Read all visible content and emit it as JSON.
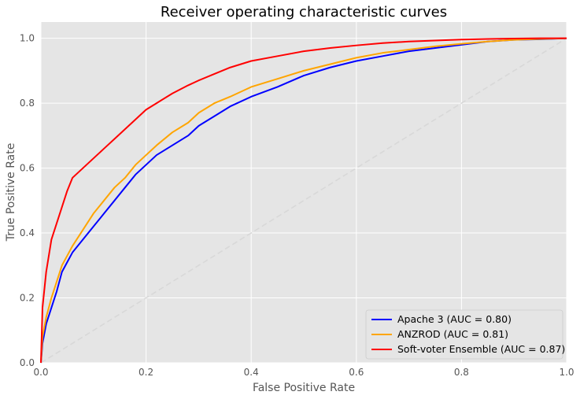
{
  "chart_data": {
    "type": "line",
    "title": "Receiver operating characteristic curves",
    "xlabel": "False Positive Rate",
    "ylabel": "True Positive Rate",
    "xlim": [
      0.0,
      1.0
    ],
    "ylim": [
      0.0,
      1.05
    ],
    "x_ticks": [
      "0.0",
      "0.2",
      "0.4",
      "0.6",
      "0.8",
      "1.0"
    ],
    "y_ticks": [
      "0.0",
      "0.2",
      "0.4",
      "0.6",
      "0.8",
      "1.0"
    ],
    "grid": true,
    "legend_position": "lower-right",
    "diagonal_reference": true,
    "series": [
      {
        "name": "Apache 3 (AUC = 0.80)",
        "color": "#0000ff",
        "x": [
          0.0,
          0.003,
          0.01,
          0.02,
          0.03,
          0.04,
          0.05,
          0.06,
          0.08,
          0.1,
          0.12,
          0.14,
          0.16,
          0.18,
          0.2,
          0.22,
          0.25,
          0.28,
          0.3,
          0.33,
          0.36,
          0.4,
          0.45,
          0.5,
          0.55,
          0.6,
          0.65,
          0.7,
          0.75,
          0.8,
          0.85,
          0.9,
          0.95,
          1.0
        ],
        "y": [
          0.0,
          0.06,
          0.12,
          0.17,
          0.22,
          0.28,
          0.31,
          0.34,
          0.38,
          0.42,
          0.46,
          0.5,
          0.54,
          0.58,
          0.61,
          0.64,
          0.67,
          0.7,
          0.73,
          0.76,
          0.79,
          0.82,
          0.85,
          0.885,
          0.91,
          0.93,
          0.945,
          0.96,
          0.97,
          0.98,
          0.99,
          0.995,
          0.997,
          1.0
        ]
      },
      {
        "name": "ANZROD (AUC = 0.81)",
        "color": "#ffa500",
        "x": [
          0.0,
          0.003,
          0.01,
          0.02,
          0.03,
          0.04,
          0.05,
          0.06,
          0.08,
          0.1,
          0.12,
          0.14,
          0.16,
          0.18,
          0.2,
          0.22,
          0.25,
          0.28,
          0.3,
          0.33,
          0.36,
          0.4,
          0.45,
          0.5,
          0.55,
          0.6,
          0.65,
          0.7,
          0.75,
          0.8,
          0.85,
          0.9,
          0.95,
          1.0
        ],
        "y": [
          0.0,
          0.08,
          0.14,
          0.2,
          0.25,
          0.3,
          0.33,
          0.36,
          0.41,
          0.46,
          0.5,
          0.54,
          0.57,
          0.61,
          0.64,
          0.67,
          0.71,
          0.74,
          0.77,
          0.8,
          0.82,
          0.85,
          0.875,
          0.9,
          0.92,
          0.94,
          0.955,
          0.965,
          0.975,
          0.983,
          0.99,
          0.995,
          0.998,
          1.0
        ]
      },
      {
        "name": "Soft-voter Ensemble (AUC = 0.87)",
        "color": "#ff0000",
        "x": [
          0.0,
          0.003,
          0.01,
          0.02,
          0.03,
          0.04,
          0.05,
          0.06,
          0.08,
          0.1,
          0.12,
          0.14,
          0.16,
          0.18,
          0.2,
          0.22,
          0.25,
          0.28,
          0.3,
          0.33,
          0.36,
          0.4,
          0.45,
          0.5,
          0.55,
          0.6,
          0.65,
          0.7,
          0.75,
          0.8,
          0.85,
          0.9,
          0.95,
          1.0
        ],
        "y": [
          0.0,
          0.17,
          0.28,
          0.38,
          0.43,
          0.48,
          0.53,
          0.57,
          0.6,
          0.63,
          0.66,
          0.69,
          0.72,
          0.75,
          0.78,
          0.8,
          0.83,
          0.855,
          0.87,
          0.89,
          0.91,
          0.93,
          0.945,
          0.96,
          0.97,
          0.978,
          0.985,
          0.99,
          0.993,
          0.996,
          0.998,
          0.999,
          1.0,
          1.0
        ]
      }
    ]
  }
}
